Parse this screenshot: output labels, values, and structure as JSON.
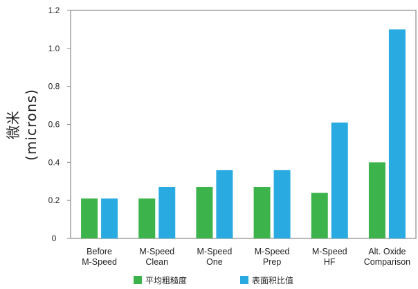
{
  "chart_data": {
    "type": "bar",
    "ylabel_line1": "微米",
    "ylabel_line2": "(microns)",
    "ylim": [
      0,
      1.2
    ],
    "yticks": [
      "0",
      "0.2",
      "0.4",
      "0.6",
      "0.8",
      "1.0",
      "1.2"
    ],
    "grid": false,
    "legend_position": "bottom",
    "categories": [
      [
        "Before",
        "M-Speed"
      ],
      [
        "M-Speed",
        "Clean"
      ],
      [
        "M-Speed",
        "One"
      ],
      [
        "M-Speed",
        "Prep"
      ],
      [
        "M-Speed",
        "HF"
      ],
      [
        "Alt. Oxide",
        "Comparison"
      ]
    ],
    "series": [
      {
        "name": "平均粗糙度",
        "color": "#3cb44b",
        "values": [
          0.21,
          0.21,
          0.27,
          0.27,
          0.24,
          0.4
        ]
      },
      {
        "name": "表面积比值",
        "color": "#29abe2",
        "values": [
          0.21,
          0.27,
          0.36,
          0.36,
          0.61,
          1.1
        ]
      }
    ]
  }
}
